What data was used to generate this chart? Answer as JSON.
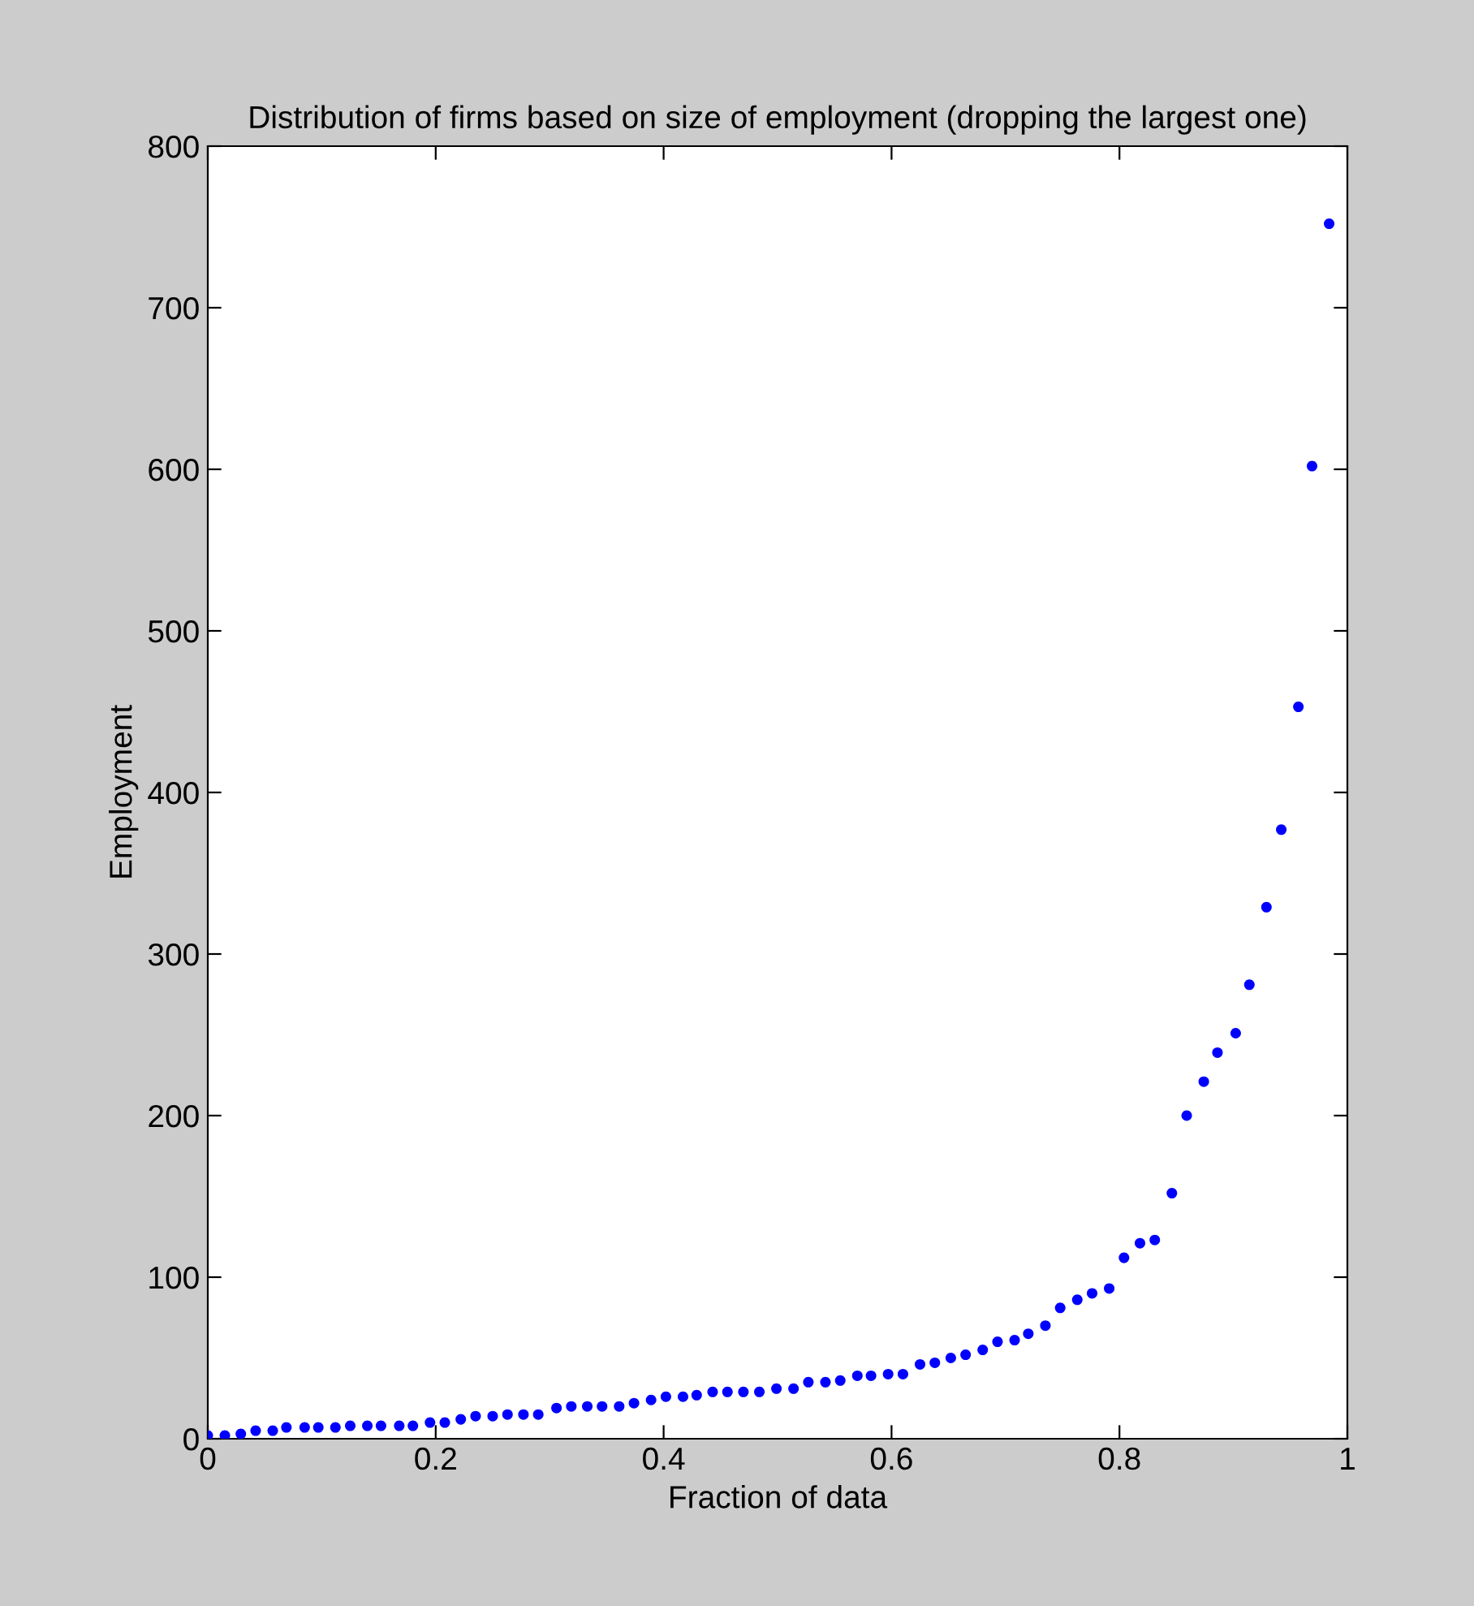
{
  "chart_data": {
    "type": "scatter",
    "title": "Distribution of firms based on size of employment (dropping the largest one)",
    "xlabel": "Fraction of data",
    "ylabel": "Employment",
    "marker": "circle",
    "grid": false,
    "xlim": [
      0,
      1
    ],
    "ylim": [
      0,
      800
    ],
    "xticks": [
      0,
      0.2,
      0.4,
      0.6,
      0.8,
      1
    ],
    "yticks": [
      0,
      100,
      200,
      300,
      400,
      500,
      600,
      700,
      800
    ],
    "series": [
      {
        "color": "#0000ff",
        "x": [
          0,
          0.015,
          0.029,
          0.042,
          0.057,
          0.069,
          0.085,
          0.097,
          0.112,
          0.125,
          0.14,
          0.152,
          0.168,
          0.18,
          0.195,
          0.208,
          0.222,
          0.235,
          0.25,
          0.263,
          0.277,
          0.29,
          0.306,
          0.319,
          0.333,
          0.346,
          0.361,
          0.374,
          0.389,
          0.402,
          0.417,
          0.429,
          0.443,
          0.456,
          0.47,
          0.484,
          0.499,
          0.514,
          0.527,
          0.542,
          0.555,
          0.57,
          0.582,
          0.597,
          0.61,
          0.625,
          0.638,
          0.652,
          0.665,
          0.68,
          0.693,
          0.708,
          0.72,
          0.735,
          0.748,
          0.763,
          0.776,
          0.791,
          0.804,
          0.818,
          0.831,
          0.846,
          0.859,
          0.874,
          0.886,
          0.902,
          0.914,
          0.929,
          0.942,
          0.957,
          0.969,
          0.984
        ],
        "values": [
          2,
          2,
          3,
          5,
          5,
          7,
          7,
          7,
          7,
          8,
          8,
          8,
          8,
          8,
          10,
          10,
          12,
          14,
          14,
          15,
          15,
          15,
          19,
          20,
          20,
          20,
          20,
          22,
          24,
          26,
          26,
          27,
          29,
          29,
          29,
          29,
          31,
          31,
          35,
          35,
          36,
          39,
          39,
          40,
          40,
          46,
          47,
          50,
          52,
          55,
          60,
          61,
          65,
          70,
          81,
          86,
          90,
          93,
          112,
          121,
          123,
          152,
          200,
          221,
          239,
          251,
          281,
          329,
          377,
          453,
          602,
          752
        ]
      }
    ]
  }
}
